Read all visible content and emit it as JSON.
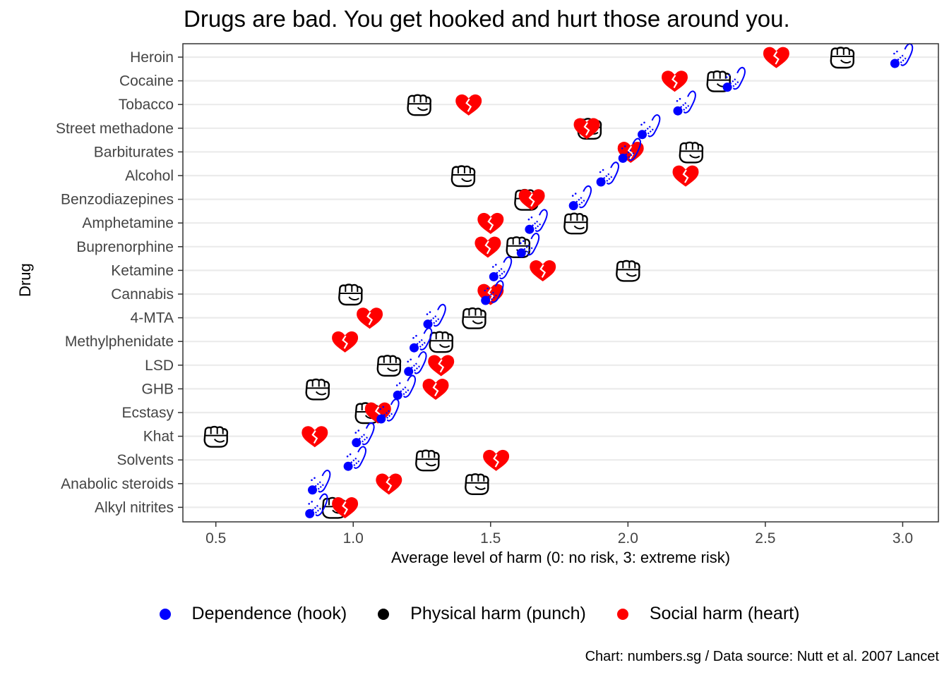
{
  "chart_data": {
    "type": "scatter",
    "title": "Drugs are bad. You get hooked and hurt those around you.",
    "xlabel": "Average level of harm (0: no risk, 3: extreme risk)",
    "ylabel": "Drug",
    "xlim": [
      0.38,
      3.13
    ],
    "x_ticks": [
      "0.5",
      "1.0",
      "1.5",
      "2.0",
      "2.5",
      "3.0"
    ],
    "x_tick_values": [
      0.5,
      1.0,
      1.5,
      2.0,
      2.5,
      3.0
    ],
    "categories": [
      "Heroin",
      "Cocaine",
      "Tobacco",
      "Street methadone",
      "Barbiturates",
      "Alcohol",
      "Benzodiazepines",
      "Amphetamine",
      "Buprenorphine",
      "Ketamine",
      "Cannabis",
      "4-MTA",
      "Methylphenidate",
      "LSD",
      "GHB",
      "Ecstasy",
      "Khat",
      "Solvents",
      "Anabolic steroids",
      "Alkyl nitrites"
    ],
    "series": [
      {
        "name": "Dependence (hook)",
        "color": "#0000ff",
        "icon": "fish-hook-icon",
        "values": [
          3.0,
          2.39,
          2.21,
          2.08,
          2.01,
          1.93,
          1.83,
          1.67,
          1.64,
          1.54,
          1.51,
          1.3,
          1.25,
          1.23,
          1.19,
          1.13,
          1.04,
          1.01,
          0.88,
          0.87
        ]
      },
      {
        "name": "Physical harm (punch)",
        "color": "#000000",
        "icon": "fist-icon",
        "values": [
          2.78,
          2.33,
          1.24,
          1.86,
          2.23,
          1.4,
          1.63,
          1.81,
          1.6,
          2.0,
          0.99,
          1.44,
          1.32,
          1.13,
          0.87,
          1.05,
          0.5,
          1.27,
          1.45,
          0.93
        ]
      },
      {
        "name": "Social harm (heart)",
        "color": "#ff0000",
        "icon": "broken-heart-icon",
        "values": [
          2.54,
          2.17,
          1.42,
          1.85,
          2.01,
          2.21,
          1.65,
          1.5,
          1.49,
          1.69,
          1.5,
          1.06,
          0.97,
          1.32,
          1.3,
          1.09,
          0.86,
          1.52,
          1.13,
          0.97
        ]
      }
    ],
    "grid": "horizontal major",
    "legend_position": "bottom",
    "caption": "Chart: numbers.sg / Data source: Nutt et al. 2007 Lancet"
  }
}
